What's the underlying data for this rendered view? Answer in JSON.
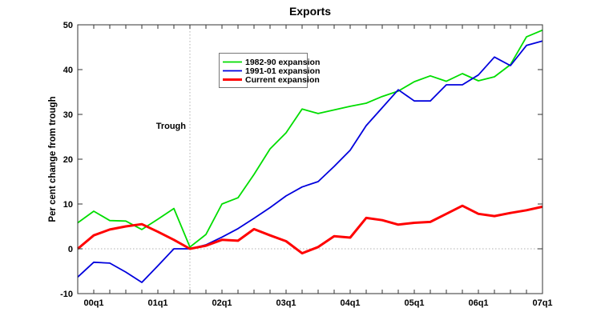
{
  "title": "Exports",
  "chart_data": {
    "type": "line",
    "title": "Exports",
    "xlabel": "",
    "ylabel": "Per cent change from trough",
    "ylim": [
      -10,
      50
    ],
    "grid": false,
    "legend_position": "upper-center-inside",
    "y_ticks": [
      "50",
      "40",
      "30",
      "20",
      "10",
      "0",
      "-10"
    ],
    "x_tick_labels": [
      "00q1",
      "01q1",
      "02q1",
      "03q1",
      "04q1",
      "05q1",
      "06q1",
      "07q1"
    ],
    "categories": [
      "99q4",
      "00q1",
      "00q2",
      "00q3",
      "00q4",
      "01q1",
      "01q2",
      "01q3",
      "01q4",
      "02q1",
      "02q2",
      "02q3",
      "02q4",
      "03q1",
      "03q2",
      "03q3",
      "03q4",
      "04q1",
      "04q2",
      "04q3",
      "04q4",
      "05q1",
      "05q2",
      "05q3",
      "05q4",
      "06q1",
      "06q2",
      "06q3",
      "06q4",
      "07q1"
    ],
    "series": [
      {
        "name": "1982-90 expansion",
        "color": "#00dd00",
        "width": 1.8,
        "values": [
          5.8,
          8.4,
          6.3,
          6.2,
          4.3,
          6.6,
          9.0,
          0.4,
          3.2,
          10.0,
          11.4,
          16.6,
          22.3,
          25.9,
          31.2,
          30.2,
          31.0,
          31.8,
          32.5,
          34.0,
          35.2,
          37.3,
          38.6,
          37.4,
          39.1,
          37.5,
          38.4,
          41.1,
          47.3,
          48.8
        ]
      },
      {
        "name": "1991-01 expansion",
        "color": "#0000dd",
        "width": 1.8,
        "values": [
          -6.3,
          -3.0,
          -3.2,
          -5.2,
          -7.5,
          -3.8,
          0.0,
          0.0,
          0.9,
          2.6,
          4.5,
          6.8,
          9.2,
          11.8,
          13.8,
          15.0,
          18.4,
          22.0,
          27.5,
          31.5,
          35.5,
          33.0,
          33.0,
          36.6,
          36.6,
          38.8,
          42.8,
          40.9,
          45.4,
          46.4
        ]
      },
      {
        "name": "Current expansion",
        "color": "#ff0000",
        "width": 3,
        "values": [
          0.0,
          3.0,
          4.3,
          5.0,
          5.5,
          3.8,
          2.0,
          0.0,
          0.7,
          2.0,
          1.8,
          4.4,
          3.0,
          1.7,
          -1.0,
          0.4,
          2.8,
          2.5,
          6.9,
          6.4,
          5.4,
          5.8,
          6.0,
          7.8,
          9.6,
          7.8,
          7.3,
          8.0,
          8.6,
          9.4
        ]
      }
    ],
    "annotations": {
      "trough_label": "Trough",
      "trough_x_category": "01q3",
      "zero_reference_line": 0
    }
  }
}
